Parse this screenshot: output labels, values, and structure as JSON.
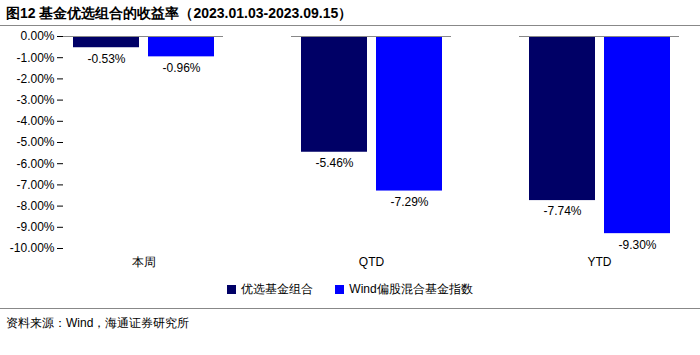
{
  "chart_data": {
    "type": "bar",
    "title": "图12 基金优选组合的收益率（2023.01.03-2023.09.15）",
    "categories": [
      "本周",
      "QTD",
      "YTD"
    ],
    "series": [
      {
        "name": "优选基金组合",
        "color": "#000066",
        "values": [
          -0.53,
          -5.46,
          -7.74
        ],
        "value_labels": [
          "-0.53%",
          "-5.46%",
          "-7.74%"
        ]
      },
      {
        "name": "Wind偏股混合基金指数",
        "color": "#0000ff",
        "values": [
          -0.96,
          -7.29,
          -9.3
        ],
        "value_labels": [
          "-0.96%",
          "-7.29%",
          "-9.30%"
        ]
      }
    ],
    "ylim": [
      -10,
      0
    ],
    "yticks": [
      {
        "value": 0,
        "label": "0.00%"
      },
      {
        "value": -1,
        "label": "-1.00%"
      },
      {
        "value": -2,
        "label": "-2.00%"
      },
      {
        "value": -3,
        "label": "-3.00%"
      },
      {
        "value": -4,
        "label": "-4.00%"
      },
      {
        "value": -5,
        "label": "-5.00%"
      },
      {
        "value": -6,
        "label": "-6.00%"
      },
      {
        "value": -7,
        "label": "-7.00%"
      },
      {
        "value": -8,
        "label": "-8.00%"
      },
      {
        "value": -9,
        "label": "-9.00%"
      },
      {
        "value": -10,
        "label": "-10.00%"
      }
    ],
    "data_labels": true,
    "legend": "bottom",
    "source": "资料来源：Wind，海通证券研究所"
  }
}
